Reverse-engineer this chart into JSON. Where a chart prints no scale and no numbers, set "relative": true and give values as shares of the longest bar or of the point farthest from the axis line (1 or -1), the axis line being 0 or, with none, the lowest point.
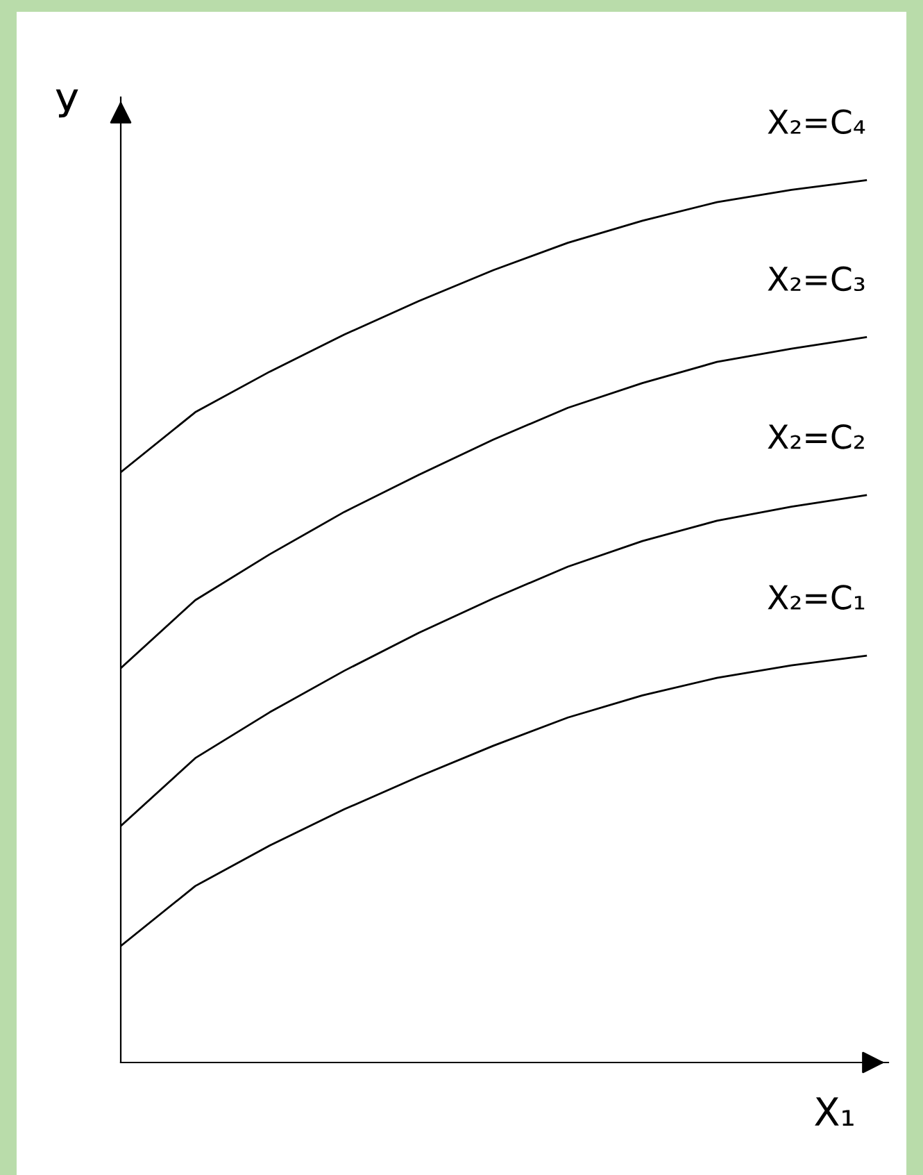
{
  "chart_data": {
    "type": "line",
    "relative": true,
    "xlabel": "X₁",
    "ylabel": "У",
    "categories": [
      null,
      null,
      null,
      null,
      null,
      null,
      null,
      null,
      null,
      null,
      null
    ],
    "series": [
      {
        "name": "X₂=C₁",
        "color": "#000000",
        "values": [
          0.132,
          0.2,
          0.246,
          0.287,
          0.324,
          0.359,
          0.391,
          0.416,
          0.436,
          0.45,
          0.461
        ]
      },
      {
        "name": "X₂=C₂",
        "color": "#000000",
        "values": [
          0.268,
          0.345,
          0.397,
          0.444,
          0.487,
          0.526,
          0.562,
          0.591,
          0.614,
          0.63,
          0.643
        ]
      },
      {
        "name": "X₂=C₃",
        "color": "#000000",
        "values": [
          0.447,
          0.524,
          0.576,
          0.624,
          0.666,
          0.706,
          0.742,
          0.77,
          0.794,
          0.809,
          0.822
        ]
      },
      {
        "name": "X₂=C₄",
        "color": "#000000",
        "values": [
          0.669,
          0.737,
          0.783,
          0.825,
          0.863,
          0.898,
          0.929,
          0.954,
          0.975,
          0.989,
          1.0
        ]
      }
    ],
    "legend": false,
    "grid": false,
    "marker": "none",
    "line_style": "solid"
  }
}
